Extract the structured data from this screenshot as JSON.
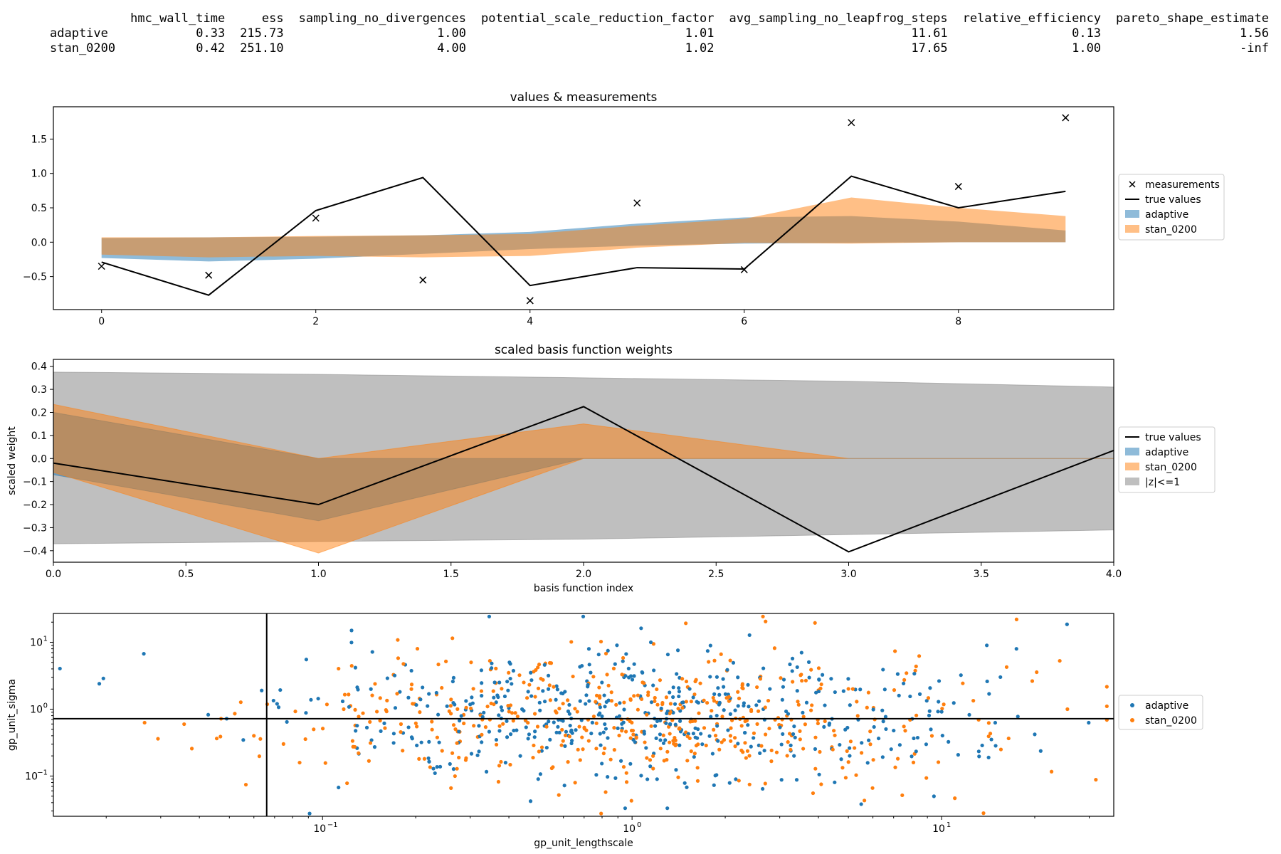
{
  "summary_table": {
    "columns": [
      "hmc_wall_time",
      "ess",
      "sampling_no_divergences",
      "potential_scale_reduction_factor",
      "avg_sampling_no_leapfrog_steps",
      "relative_efficiency",
      "pareto_shape_estimate"
    ],
    "rows": [
      {
        "name": "adaptive",
        "values": [
          "0.33",
          "215.73",
          "1.00",
          "1.01",
          "11.61",
          "0.13",
          "1.56"
        ]
      },
      {
        "name": "stan_0200",
        "values": [
          "0.42",
          "251.10",
          "4.00",
          "1.02",
          "17.65",
          "1.00",
          "-inf"
        ]
      }
    ]
  },
  "colors": {
    "adaptive": "#1f77b4",
    "stan_0200": "#ff7f0e",
    "z_band": "#bfbfbf",
    "true_values": "#000000"
  },
  "chart_data": [
    {
      "type": "line",
      "title": "values & measurements",
      "xlabel": "",
      "ylabel": "",
      "xlim": [
        -0.45,
        9.45
      ],
      "ylim": [
        -0.98,
        1.97
      ],
      "xticks": [
        0,
        2,
        4,
        6,
        8
      ],
      "yticks": [
        -0.5,
        0.0,
        0.5,
        1.0,
        1.5
      ],
      "ytick_labels": [
        "−0.5",
        "0.0",
        "0.5",
        "1.0",
        "1.5"
      ],
      "legend": [
        "measurements",
        "true values",
        "adaptive",
        "stan_0200"
      ],
      "legend_position": "right",
      "x": [
        0,
        1,
        2,
        3,
        4,
        5,
        6,
        7,
        8,
        9
      ],
      "measurements": [
        -0.35,
        -0.48,
        0.35,
        -0.55,
        -0.85,
        0.57,
        -0.4,
        1.74,
        0.81,
        1.81
      ],
      "true_values": [
        -0.29,
        -0.77,
        0.46,
        0.94,
        -0.63,
        -0.37,
        -0.39,
        0.96,
        0.5,
        0.74
      ],
      "bands": [
        {
          "name": "adaptive",
          "lower": [
            -0.23,
            -0.28,
            -0.24,
            -0.17,
            -0.1,
            -0.05,
            -0.02,
            -0.01,
            0.0,
            0.0
          ],
          "upper": [
            0.06,
            0.07,
            0.08,
            0.1,
            0.15,
            0.27,
            0.36,
            0.38,
            0.3,
            0.17
          ]
        },
        {
          "name": "stan_0200",
          "lower": [
            -0.18,
            -0.22,
            -0.2,
            -0.22,
            -0.2,
            -0.08,
            -0.01,
            -0.02,
            0.0,
            0.0
          ],
          "upper": [
            0.07,
            0.07,
            0.09,
            0.1,
            0.12,
            0.24,
            0.34,
            0.65,
            0.5,
            0.38
          ]
        }
      ]
    },
    {
      "type": "line",
      "title": "scaled basis function weights",
      "xlabel": "basis function index",
      "ylabel": "scaled weight",
      "xlim": [
        0,
        4
      ],
      "ylim": [
        -0.45,
        0.43
      ],
      "xticks": [
        0,
        0.5,
        1,
        1.5,
        2,
        2.5,
        3,
        3.5,
        4
      ],
      "xtick_labels": [
        "0.0",
        "0.5",
        "1.0",
        "1.5",
        "2.0",
        "2.5",
        "3.0",
        "3.5",
        "4.0"
      ],
      "yticks": [
        -0.4,
        -0.3,
        -0.2,
        -0.1,
        0,
        0.1,
        0.2,
        0.3,
        0.4
      ],
      "ytick_labels": [
        "−0.4",
        "−0.3",
        "−0.2",
        "−0.1",
        "0.0",
        "0.1",
        "0.2",
        "0.3",
        "0.4"
      ],
      "legend": [
        "true values",
        "adaptive",
        "stan_0200",
        "|z|<=1"
      ],
      "legend_position": "right",
      "x": [
        0,
        1,
        2,
        3,
        4
      ],
      "true_values": [
        -0.02,
        -0.2,
        0.225,
        -0.405,
        0.035
      ],
      "z_band": {
        "name": "|z|<=1",
        "lower": [
          -0.37,
          -0.36,
          -0.35,
          -0.33,
          -0.31
        ],
        "upper": [
          0.375,
          0.365,
          0.35,
          0.335,
          0.31
        ]
      },
      "bands": [
        {
          "name": "adaptive",
          "lower": [
            -0.07,
            -0.27,
            0.0,
            0.0,
            0.0
          ],
          "upper": [
            0.2,
            0.0,
            0.0,
            0.0,
            0.0
          ]
        },
        {
          "name": "stan_0200",
          "lower": [
            -0.06,
            -0.41,
            0.0,
            0.0,
            0.0
          ],
          "upper": [
            0.235,
            0.0,
            0.15,
            0.0,
            0.0
          ]
        }
      ]
    },
    {
      "type": "scatter",
      "title": "",
      "xlabel": "gp_unit_lengthscale",
      "ylabel": "gp_unit_sigma",
      "xscale": "log",
      "yscale": "log",
      "xlim": [
        0.0135,
        36
      ],
      "ylim": [
        0.025,
        27
      ],
      "xticks": [
        0.1,
        1,
        10
      ],
      "xtick_labels": [
        "10",
        "10",
        "10"
      ],
      "xtick_exponents": [
        "−1",
        "0",
        "1"
      ],
      "yticks": [
        0.1,
        1,
        10
      ],
      "ytick_labels": [
        "10",
        "10",
        "10"
      ],
      "ytick_exponents": [
        "−1",
        "0",
        "1"
      ],
      "legend": [
        "adaptive",
        "stan_0200"
      ],
      "legend_position": "right",
      "reference_x": 0.066,
      "reference_y": 0.72,
      "series": [
        {
          "name": "adaptive",
          "points_count": 500,
          "center": [
            1.1,
            0.75
          ],
          "spread": [
            0.55,
            0.5
          ],
          "notable_points": [
            [
              0.019,
              2.4
            ],
            [
              0.049,
              0.72
            ],
            [
              14,
              9.0
            ],
            [
              20,
              0.42
            ],
            [
              1.3,
              0.033
            ],
            [
              5.5,
              0.038
            ],
            [
              0.95,
              0.033
            ],
            [
              1.15,
              10.0
            ]
          ]
        },
        {
          "name": "stan_0200",
          "points_count": 500,
          "center": [
            1.05,
            0.75
          ],
          "spread": [
            0.55,
            0.5
          ],
          "notable_points": [
            [
              0.047,
              0.72
            ],
            [
              0.06,
              0.4
            ],
            [
              2.7,
              20.5
            ],
            [
              3.9,
              19.5
            ],
            [
              25.5,
              1.0
            ],
            [
              0.12,
              0.078
            ],
            [
              0.26,
              0.066
            ],
            [
              0.58,
              0.052
            ]
          ]
        }
      ]
    }
  ]
}
